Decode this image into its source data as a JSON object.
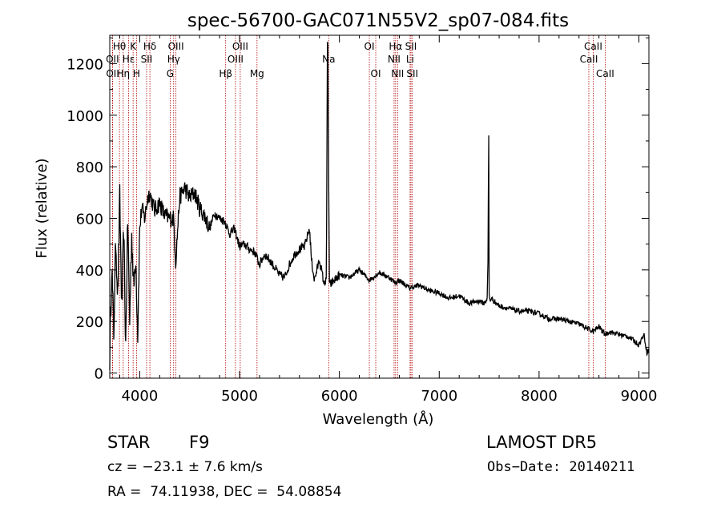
{
  "chart_data": {
    "type": "line",
    "title": "spec-56700-GAC071N55V2_sp07-084.fits",
    "xlabel": "Wavelength (Å)",
    "ylabel": "Flux (relative)",
    "xlim": [
      3700,
      9100
    ],
    "ylim": [
      -20,
      1310
    ],
    "xticks": [
      4000,
      5000,
      6000,
      7000,
      8000,
      9000
    ],
    "yticks": [
      0,
      200,
      400,
      600,
      800,
      1000,
      1200
    ],
    "grid": false,
    "line_color": "#000000",
    "marker_color": "#b00000",
    "spectrum": {
      "x": [
        3700,
        3720,
        3740,
        3760,
        3780,
        3800,
        3820,
        3840,
        3860,
        3880,
        3900,
        3920,
        3940,
        3960,
        3980,
        4000,
        4020,
        4050,
        4080,
        4100,
        4150,
        4200,
        4250,
        4300,
        4340,
        4360,
        4400,
        4450,
        4500,
        4550,
        4600,
        4650,
        4700,
        4750,
        4800,
        4850,
        4900,
        4950,
        5000,
        5050,
        5100,
        5150,
        5200,
        5250,
        5300,
        5350,
        5400,
        5450,
        5500,
        5550,
        5600,
        5650,
        5700,
        5720,
        5750,
        5800,
        5850,
        5870,
        5880,
        5885,
        5890,
        5900,
        5950,
        6000,
        6100,
        6200,
        6300,
        6400,
        6500,
        6560,
        6600,
        6700,
        6800,
        6900,
        7000,
        7100,
        7200,
        7300,
        7400,
        7450,
        7480,
        7490,
        7495,
        7500,
        7510,
        7520,
        7600,
        7700,
        7800,
        7900,
        8000,
        8100,
        8200,
        8300,
        8400,
        8500,
        8540,
        8600,
        8660,
        8700,
        8800,
        8900,
        9000,
        9050,
        9080,
        9100
      ],
      "y": [
        60,
        420,
        150,
        520,
        300,
        680,
        240,
        560,
        100,
        600,
        200,
        540,
        330,
        460,
        150,
        560,
        640,
        600,
        680,
        700,
        630,
        660,
        610,
        600,
        600,
        430,
        680,
        720,
        680,
        700,
        640,
        610,
        560,
        620,
        600,
        590,
        540,
        560,
        490,
        500,
        480,
        470,
        420,
        460,
        440,
        410,
        380,
        370,
        420,
        460,
        480,
        490,
        560,
        440,
        360,
        440,
        340,
        380,
        1280,
        1260,
        900,
        340,
        360,
        380,
        370,
        400,
        360,
        390,
        370,
        350,
        360,
        330,
        340,
        320,
        310,
        290,
        300,
        270,
        280,
        270,
        290,
        460,
        1080,
        300,
        280,
        290,
        260,
        250,
        240,
        240,
        230,
        210,
        210,
        200,
        190,
        170,
        160,
        180,
        150,
        160,
        150,
        140,
        110,
        150,
        80,
        90
      ]
    },
    "lines": [
      {
        "name": "Hθ",
        "x": 3797,
        "row": 1
      },
      {
        "name": "OII",
        "x": 3727,
        "row": 2
      },
      {
        "name": "OII",
        "x": 3729,
        "row": 3
      },
      {
        "name": "K",
        "x": 3934,
        "row": 1
      },
      {
        "name": "Hε",
        "x": 3889,
        "row": 2
      },
      {
        "name": "Hη",
        "x": 3835,
        "row": 3
      },
      {
        "name": "H",
        "x": 3968,
        "row": 3
      },
      {
        "name": "Hδ",
        "x": 4102,
        "row": 1
      },
      {
        "name": "SII",
        "x": 4069,
        "row": 2
      },
      {
        "name": "OIII",
        "x": 4363,
        "row": 1
      },
      {
        "name": "Hγ",
        "x": 4340,
        "row": 2
      },
      {
        "name": "G",
        "x": 4305,
        "row": 3
      },
      {
        "name": "Hβ",
        "x": 4861,
        "row": 3
      },
      {
        "name": "OIII",
        "x": 5007,
        "row": 1
      },
      {
        "name": "OIII",
        "x": 4959,
        "row": 2
      },
      {
        "name": "Mg",
        "x": 5175,
        "row": 3
      },
      {
        "name": "Na",
        "x": 5893,
        "row": 2
      },
      {
        "name": "OI",
        "x": 6300,
        "row": 1
      },
      {
        "name": "OI",
        "x": 6364,
        "row": 3
      },
      {
        "name": "Hα",
        "x": 6563,
        "row": 1
      },
      {
        "name": "NII",
        "x": 6548,
        "row": 2
      },
      {
        "name": "NII",
        "x": 6583,
        "row": 3
      },
      {
        "name": "SII",
        "x": 6717,
        "row": 1
      },
      {
        "name": "Li",
        "x": 6708,
        "row": 2
      },
      {
        "name": "SII",
        "x": 6731,
        "row": 3
      },
      {
        "name": "CaII",
        "x": 8542,
        "row": 1
      },
      {
        "name": "CaII",
        "x": 8498,
        "row": 2
      },
      {
        "name": "CaII",
        "x": 8662,
        "row": 3
      }
    ]
  },
  "info": {
    "object_class": "STAR",
    "subclass": "F9",
    "survey": "LAMOST DR5",
    "redshift": "cz = −23.1 ± 7.6 km/s",
    "obs_date": "Obs−Date: 20140211",
    "coords": "RA =  74.11938, DEC =  54.08854"
  }
}
